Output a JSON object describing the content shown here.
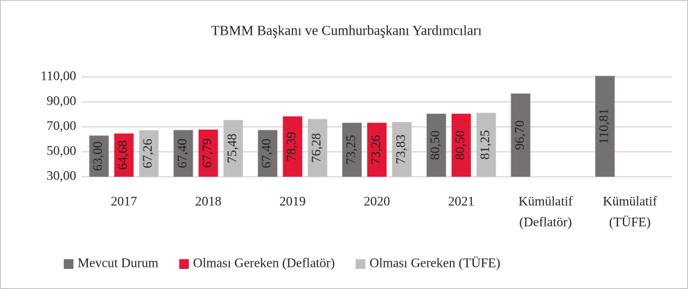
{
  "chart_data": {
    "type": "bar",
    "title": "TBMM Başkanı ve Cumhurbaşkanı Yardımcıları",
    "categories": [
      [
        "2017"
      ],
      [
        "2018"
      ],
      [
        "2019"
      ],
      [
        "2020"
      ],
      [
        "2021"
      ],
      [
        "Kümülatif",
        "(Deflatör)"
      ],
      [
        "Kümülatif",
        "(TÜFE)"
      ]
    ],
    "series": [
      {
        "name": "Mevcut Durum",
        "color": "#767171",
        "values": [
          63.0,
          67.4,
          67.4,
          73.25,
          80.5,
          96.7,
          110.81
        ],
        "value_labels": [
          "63,00",
          "67,40",
          "67,40",
          "73,25",
          "80,50",
          "96,70",
          "110,81"
        ]
      },
      {
        "name": "Olması Gereken (Deflatör)",
        "color": "#e31837",
        "values": [
          64.68,
          67.79,
          78.39,
          73.26,
          80.5,
          null,
          null
        ],
        "value_labels": [
          "64,68",
          "67,79",
          "78,39",
          "73,26",
          "80,50",
          null,
          null
        ]
      },
      {
        "name": "Olması Gereken (TÜFE)",
        "color": "#bfbfbf",
        "values": [
          67.26,
          75.48,
          76.28,
          73.83,
          81.25,
          null,
          null
        ],
        "value_labels": [
          "67,26",
          "75,48",
          "76,28",
          "73,83",
          "81,25",
          null,
          null
        ]
      }
    ],
    "ylim": [
      30,
      110
    ],
    "yticks": [
      {
        "value": 30,
        "label": "30,00"
      },
      {
        "value": 50,
        "label": "50,00"
      },
      {
        "value": 70,
        "label": "70,00"
      },
      {
        "value": 90,
        "label": "90,00"
      },
      {
        "value": 110,
        "label": "110,00"
      }
    ],
    "grid": true,
    "legend": "bottom"
  }
}
